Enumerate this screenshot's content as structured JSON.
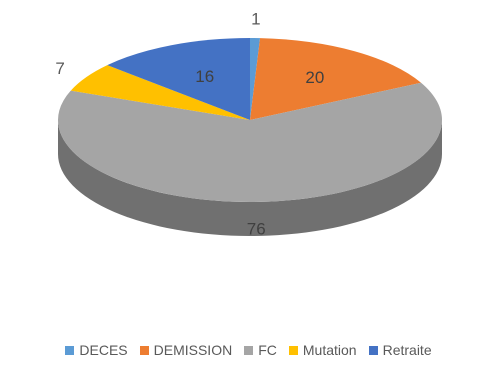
{
  "chart_data": {
    "type": "pie",
    "categories": [
      "DECES",
      "DEMISSION",
      "FC",
      "Mutation",
      "Retraite"
    ],
    "values": [
      1,
      20,
      76,
      7,
      16
    ],
    "data_labels": [
      "1",
      "20",
      "76",
      "7",
      "16"
    ],
    "colors": [
      "#5B9BD5",
      "#ED7D31",
      "#A5A5A5",
      "#FFC000",
      "#4472C4"
    ],
    "style": "3d",
    "legend_position": "bottom"
  }
}
